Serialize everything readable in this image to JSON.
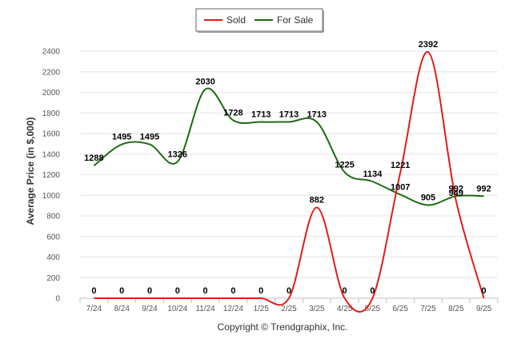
{
  "chart_data": {
    "type": "line",
    "title": "",
    "xlabel": "",
    "ylabel": "Average Price (in $,000)",
    "ylim": [
      0,
      2400
    ],
    "yticks": [
      0,
      200,
      400,
      600,
      800,
      1000,
      1200,
      1400,
      1600,
      1800,
      2000,
      2200,
      2400
    ],
    "grid": true,
    "legend_position": "top-center",
    "categories": [
      "7/24",
      "8/24",
      "9/24",
      "10/24",
      "11/24",
      "12/24",
      "1/25",
      "2/25",
      "3/25",
      "4/25",
      "5/25",
      "6/25",
      "7/25",
      "8/25",
      "9/25"
    ],
    "series": [
      {
        "name": "Sold",
        "color": "#e31b1b",
        "values": [
          0,
          0,
          0,
          0,
          0,
          0,
          0,
          0,
          882,
          0,
          0,
          1221,
          2392,
          949,
          0
        ]
      },
      {
        "name": "For Sale",
        "color": "#1e6b12",
        "values": [
          1288,
          1495,
          1495,
          1326,
          2030,
          1728,
          1713,
          1713,
          1713,
          1225,
          1134,
          1007,
          905,
          992,
          992
        ]
      }
    ],
    "credit": "Copyright © Trendgraphix, Inc."
  }
}
